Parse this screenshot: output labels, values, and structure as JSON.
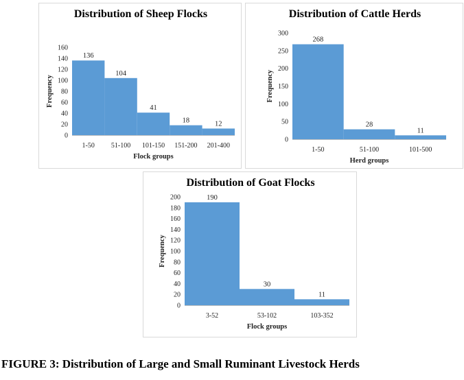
{
  "figure_caption": "FIGURE 3: Distribution of Large and Small Ruminant Livestock Herds",
  "chart_data": [
    {
      "type": "bar",
      "title": "Distribution of Sheep Flocks",
      "xlabel": "Flock groups",
      "ylabel": "Frequency",
      "categories": [
        "1-50",
        "51-100",
        "101-150",
        "151-200",
        "201-400"
      ],
      "values": [
        136,
        104,
        41,
        18,
        12
      ],
      "ylim": [
        0,
        160
      ],
      "yticks": [
        0,
        20,
        40,
        60,
        80,
        100,
        120,
        140,
        160
      ],
      "bar_color": "#5b9bd5",
      "grid": false,
      "legend": "none"
    },
    {
      "type": "bar",
      "title": "Distribution of Cattle Herds",
      "xlabel": "Herd groups",
      "ylabel": "Frequency",
      "categories": [
        "1-50",
        "51-100",
        "101-500"
      ],
      "values": [
        268,
        28,
        11
      ],
      "ylim": [
        0,
        300
      ],
      "yticks": [
        0,
        50,
        100,
        150,
        200,
        250,
        300
      ],
      "bar_color": "#5b9bd5",
      "grid": false,
      "legend": "none"
    },
    {
      "type": "bar",
      "title": "Distribution of Goat Flocks",
      "xlabel": "Flock groups",
      "ylabel": "Frequency",
      "categories": [
        "3-52",
        "53-102",
        "103-352"
      ],
      "values": [
        190,
        30,
        11
      ],
      "ylim": [
        0,
        200
      ],
      "yticks": [
        0,
        20,
        40,
        60,
        80,
        100,
        120,
        140,
        160,
        180,
        200
      ],
      "bar_color": "#5b9bd5",
      "grid": false,
      "legend": "none"
    }
  ]
}
